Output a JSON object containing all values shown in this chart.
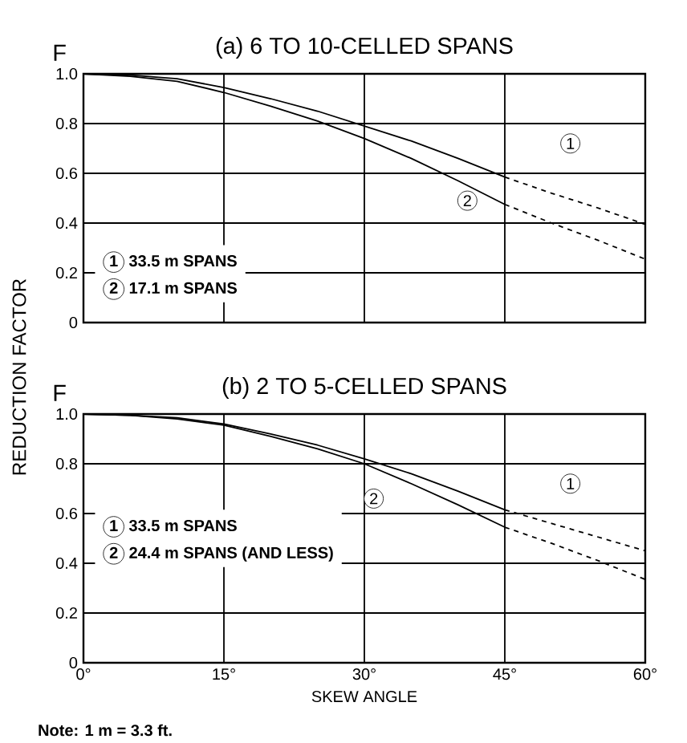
{
  "chart_data": [
    {
      "type": "line",
      "title": "(a) 6 TO 10-CELLED SPANS",
      "ylabel": "F",
      "xlim": [
        0,
        60
      ],
      "ylim": [
        0,
        1.0
      ],
      "grid": true,
      "legend": "bottom left",
      "tick_labels": "y",
      "marker": "none",
      "xticks": [
        {
          "value": 0,
          "label": null
        },
        {
          "value": 15,
          "label": null
        },
        {
          "value": 30,
          "label": null
        },
        {
          "value": 45,
          "label": null
        },
        {
          "value": 60,
          "label": null
        }
      ],
      "yticks": [
        0,
        {
          "value": 0.2,
          "label": "0.2"
        },
        {
          "value": 0.4,
          "label": "0.4"
        },
        {
          "value": 0.6,
          "label": "0.6"
        },
        {
          "value": 0.8,
          "label": "0.8"
        },
        {
          "value": 1.0,
          "label": "1.0"
        }
      ],
      "annotations": [
        {
          "text": "1",
          "x": 52,
          "y": 0.72
        },
        {
          "text": "2",
          "x": 41,
          "y": 0.49
        }
      ],
      "series": [
        {
          "name": "33.5 m SPANS",
          "color": "#000000",
          "line_style": "solid",
          "x": [
            0,
            5,
            10,
            15,
            20,
            25,
            30,
            35,
            40,
            45
          ],
          "values": [
            1.0,
            0.995,
            0.98,
            0.945,
            0.9,
            0.85,
            0.79,
            0.73,
            0.66,
            0.585
          ]
        },
        {
          "name": "17.1 m SPANS",
          "color": "#000000",
          "line_style": "solid",
          "x": [
            0,
            5,
            10,
            15,
            20,
            25,
            30,
            35,
            40,
            45
          ],
          "values": [
            1.0,
            0.99,
            0.97,
            0.925,
            0.87,
            0.81,
            0.74,
            0.66,
            0.57,
            0.475
          ]
        },
        {
          "color": "#000000",
          "line_style": "dashed",
          "x": [
            45,
            50,
            55,
            60
          ],
          "values": [
            0.585,
            0.52,
            0.46,
            0.395
          ]
        },
        {
          "color": "#000000",
          "line_style": "dashed",
          "x": [
            45,
            50,
            55,
            60
          ],
          "values": [
            0.475,
            0.4,
            0.33,
            0.255
          ]
        }
      ]
    },
    {
      "type": "line",
      "title": "(b) 2 TO 5-CELLED SPANS",
      "ylabel": "F",
      "xlabel": "SKEW ANGLE",
      "xlim": [
        0,
        60
      ],
      "ylim": [
        0,
        1.0
      ],
      "grid": true,
      "legend": "left",
      "marker": "none",
      "xticks": [
        {
          "value": 0,
          "label": "0°"
        },
        {
          "value": 15,
          "label": "15°"
        },
        {
          "value": 30,
          "label": "30°"
        },
        {
          "value": 45,
          "label": "45°"
        },
        {
          "value": 60,
          "label": "60°"
        }
      ],
      "yticks": [
        0,
        {
          "value": 0.2,
          "label": "0.2"
        },
        {
          "value": 0.4,
          "label": "0.4"
        },
        {
          "value": 0.6,
          "label": "0.6"
        },
        {
          "value": 0.8,
          "label": "0.8"
        },
        {
          "value": 1.0,
          "label": "1.0"
        }
      ],
      "annotations": [
        {
          "text": "1",
          "x": 52,
          "y": 0.72
        },
        {
          "text": "2",
          "x": 31,
          "y": 0.66
        },
        "REDUCTION FACTOR",
        "Note: 1 m = 3.3 ft."
      ],
      "series": [
        {
          "name": "33.5 m SPANS",
          "color": "#000000",
          "line_style": "solid",
          "x": [
            0,
            5,
            10,
            15,
            20,
            25,
            30,
            35,
            40,
            45
          ],
          "values": [
            1.0,
            0.995,
            0.985,
            0.96,
            0.92,
            0.875,
            0.82,
            0.76,
            0.69,
            0.615
          ]
        },
        {
          "name": "24.4 m SPANS (AND LESS)",
          "color": "#000000",
          "line_style": "solid",
          "x": [
            0,
            5,
            10,
            15,
            20,
            25,
            30,
            35,
            40,
            45
          ],
          "values": [
            1.0,
            0.995,
            0.98,
            0.955,
            0.91,
            0.86,
            0.8,
            0.72,
            0.635,
            0.545
          ]
        },
        {
          "color": "#000000",
          "line_style": "dashed",
          "x": [
            45,
            50,
            55,
            60
          ],
          "values": [
            0.615,
            0.56,
            0.505,
            0.45
          ]
        },
        {
          "color": "#000000",
          "line_style": "dashed",
          "x": [
            45,
            50,
            55,
            60
          ],
          "values": [
            0.545,
            0.48,
            0.41,
            0.335
          ]
        }
      ]
    }
  ]
}
